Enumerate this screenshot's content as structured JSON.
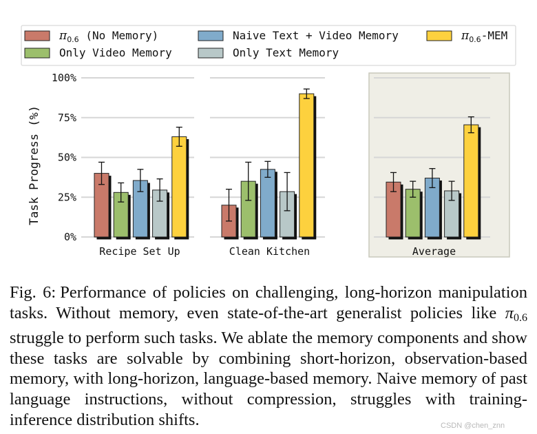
{
  "legend": [
    {
      "prefix": "π",
      "sub": "0.6",
      "label": " (No Memory)",
      "color": "#c97a6a"
    },
    {
      "prefix": "",
      "sub": "",
      "label": "Naive Text + Video Memory",
      "color": "#80abcb"
    },
    {
      "prefix": "π",
      "sub": "0.6",
      "label": "-MEM",
      "color": "#fdd13e"
    },
    {
      "prefix": "",
      "sub": "",
      "label": "Only Video Memory",
      "color": "#9cbf6c"
    },
    {
      "prefix": "",
      "sub": "",
      "label": "Only Text Memory",
      "color": "#b8c8c8"
    }
  ],
  "chart_data": {
    "type": "bar",
    "ylabel": "Task Progress (%)",
    "ylim": [
      0,
      100
    ],
    "yticks": [
      "0%",
      "25%",
      "50%",
      "75%",
      "100%"
    ],
    "grid": true,
    "legend_position": "top",
    "categories": [
      "Recipe Set Up",
      "Clean Kitchen",
      "Average"
    ],
    "highlighted_category": "Average",
    "series": [
      {
        "name": "π0.6 (No Memory)",
        "color": "#c97a6a",
        "values": [
          40,
          20,
          34.5
        ],
        "errors": [
          7,
          10,
          6
        ]
      },
      {
        "name": "Only Video Memory",
        "color": "#9cbf6c",
        "values": [
          28,
          35,
          30
        ],
        "errors": [
          6,
          12,
          5
        ]
      },
      {
        "name": "Naive Text + Video Memory",
        "color": "#80abcb",
        "values": [
          35.5,
          42.5,
          37
        ],
        "errors": [
          7,
          5,
          6
        ]
      },
      {
        "name": "Only Text Memory",
        "color": "#b8c8c8",
        "values": [
          29.5,
          28.5,
          29
        ],
        "errors": [
          7,
          12,
          6
        ]
      },
      {
        "name": "π0.6-MEM",
        "color": "#fdd13e",
        "values": [
          63,
          90,
          70.5
        ],
        "errors": [
          6,
          3,
          5
        ]
      }
    ]
  },
  "caption": {
    "fig_label": "Fig. 6:",
    "part1": "Performance of policies on challenging, long-horizon manipulation tasks. Without memory, even state-of-the-art generalist policies like ",
    "pi": "π",
    "pi_sub": "0.6",
    "part2": " struggle to perform such tasks. We ablate the memory components and show these tasks are solvable by combining short-horizon, observation-based memory, with long-horizon, language-based memory. Naive memory of past language instructions, without compression, struggles with training-inference distribution shifts."
  },
  "watermark": "CSDN @chen_znn"
}
